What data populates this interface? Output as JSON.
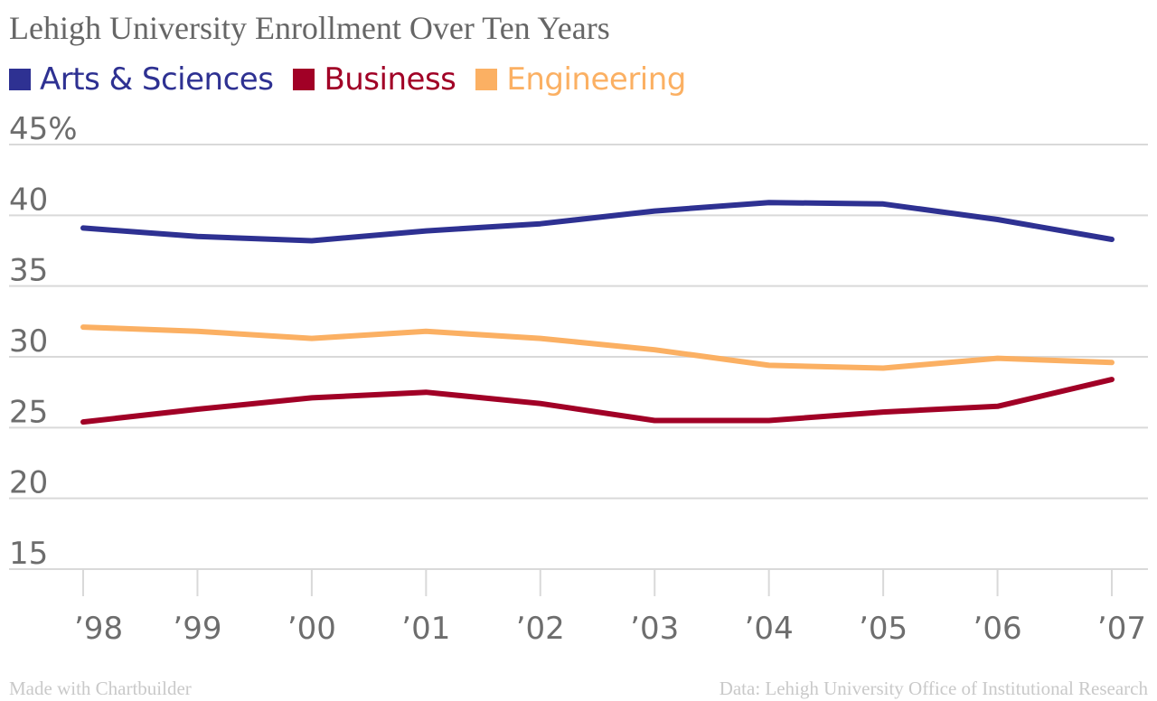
{
  "title": "Lehigh University Enrollment Over Ten Years",
  "footer": {
    "credit": "Made with Chartbuilder",
    "source": "Data: Lehigh University Office of Institutional Research"
  },
  "chart_data": {
    "type": "line",
    "title": "Lehigh University Enrollment Over Ten Years",
    "xlabel": "",
    "ylabel": "",
    "categories": [
      "’98",
      "’99",
      "’00",
      "’01",
      "’02",
      "’03",
      "’04",
      "’05",
      "’06",
      "’07"
    ],
    "ylim": [
      15,
      45
    ],
    "yticks": [
      15,
      20,
      25,
      30,
      35,
      40,
      45
    ],
    "ytick_labels": [
      "15",
      "20",
      "25",
      "30",
      "35",
      "40",
      "45%"
    ],
    "grid": true,
    "legend_position": "top-left",
    "series": [
      {
        "name": "Arts & Sciences",
        "color": "#2e3192",
        "values": [
          39.1,
          38.5,
          38.2,
          38.9,
          39.4,
          40.3,
          40.9,
          40.8,
          39.7,
          38.3
        ]
      },
      {
        "name": "Business",
        "color": "#a10026",
        "values": [
          25.4,
          26.3,
          27.1,
          27.5,
          26.7,
          25.5,
          25.5,
          26.1,
          26.5,
          28.4
        ]
      },
      {
        "name": "Engineering",
        "color": "#fbb063",
        "values": [
          32.1,
          31.8,
          31.3,
          31.8,
          31.3,
          30.5,
          29.4,
          29.2,
          29.9,
          29.6
        ]
      }
    ]
  }
}
